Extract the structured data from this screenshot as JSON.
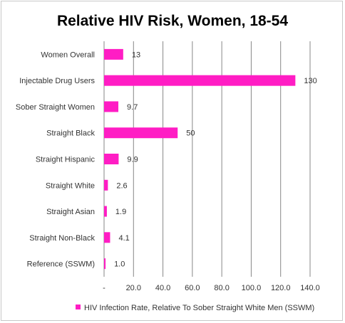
{
  "chart_data": {
    "type": "bar",
    "orientation": "horizontal",
    "title": "Relative HIV Risk, Women, 18-54",
    "xlabel": "",
    "ylabel": "",
    "categories": [
      "Women Overall",
      "Injectable Drug Users",
      "Sober Straight Women",
      "Straight Black",
      "Straight Hispanic",
      "Straight White",
      "Straight Asian",
      "Straight Non-Black",
      "Reference (SSWM)"
    ],
    "series": [
      {
        "name": "HIV Infection Rate, Relative To Sober Straight White Men (SSWM)",
        "values": [
          13,
          130,
          9.7,
          50,
          9.9,
          2.6,
          1.9,
          4.1,
          1.0
        ],
        "labels": [
          "13",
          "130",
          "9.7",
          "50",
          "9.9",
          "2.6",
          "1.9",
          "4.1",
          "1.0"
        ]
      }
    ],
    "xlim": [
      0,
      140
    ],
    "ticks": [
      0,
      20,
      40,
      60,
      80,
      100,
      120,
      140
    ],
    "tick_labels": [
      "-",
      "20.0",
      "40.0",
      "60.0",
      "80.0",
      "100.0",
      "120.0",
      "140.0"
    ],
    "grid": "vertical",
    "legend_position": "bottom",
    "colors": {
      "bar": "#ff1dc4",
      "grid": "#878787",
      "text": "#333333"
    }
  }
}
